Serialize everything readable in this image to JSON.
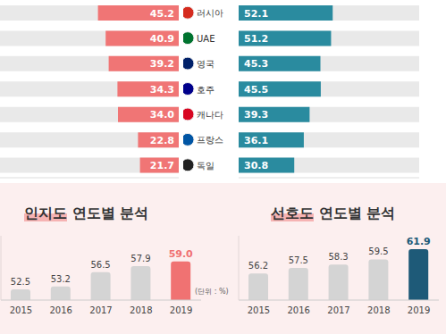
{
  "chart_data": [
    {
      "type": "diverging_bar",
      "orientation": "horizontal",
      "categories": [
        "러시아",
        "UAE",
        "영국",
        "호주",
        "캐나다",
        "프랑스",
        "독일"
      ],
      "series": [
        {
          "color": "#f07575",
          "values": [
            45.2,
            40.9,
            39.2,
            34.3,
            34.0,
            22.8,
            21.7
          ],
          "value_labels": [
            "45.2",
            "40.9",
            "39.2",
            "34.3",
            "34.0",
            "22.8",
            "21.7"
          ]
        },
        {
          "color": "#2a8b9f",
          "values": [
            52.1,
            51.2,
            45.3,
            45.5,
            39.3,
            36.1,
            30.8
          ]
        }
      ],
      "xlim": [
        0,
        100
      ],
      "data_labels": true,
      "tick_labels": "y"
    },
    {
      "type": "bar",
      "title": "인지도 연도별 분석",
      "categories": [
        "2015",
        "2016",
        "2017",
        "2018",
        "2019"
      ],
      "values": [
        52.5,
        53.2,
        56.5,
        57.9,
        59.0
      ],
      "value_labels": [
        "52.5",
        "53.2",
        "56.5",
        "57.9",
        "59.0"
      ],
      "colors": [
        "#d4d4d4",
        "#d4d4d4",
        "#d4d4d4",
        "#d4d4d4",
        "#f07272"
      ],
      "ylim": [
        50,
        65
      ],
      "data_labels": true,
      "tick_labels": "x",
      "annotation": "(단위 : %)"
    },
    {
      "type": "bar",
      "title": "선호도 연도별 분석",
      "categories": [
        "2015",
        "2016",
        "2017",
        "2018",
        "2019"
      ],
      "values": [
        56.2,
        57.5,
        58.3,
        59.5,
        61.9
      ],
      "colors": [
        "#d4d4d4",
        "#d4d4d4",
        "#d4d4d4",
        "#d4d4d4",
        "#1e5a78"
      ],
      "ylim": [
        50,
        65
      ],
      "data_labels": true,
      "tick_labels": "x"
    }
  ]
}
